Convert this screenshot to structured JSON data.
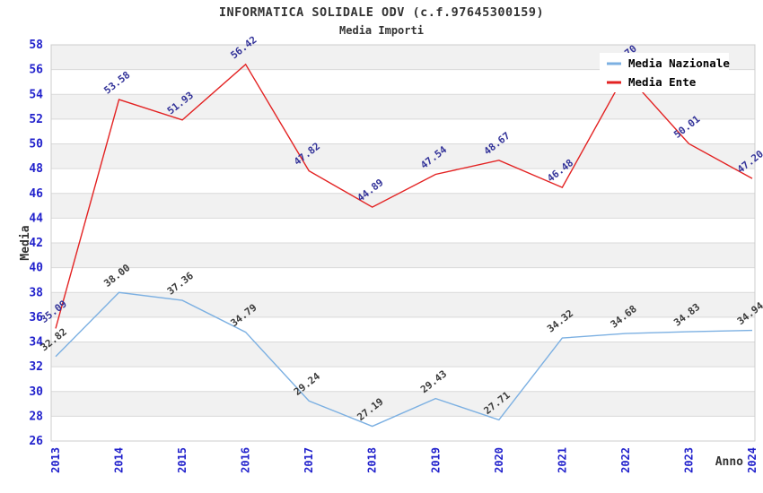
{
  "title": "INFORMATICA SOLIDALE ODV (c.f.97645300159)",
  "subtitle": "Media Importi",
  "chart_data": {
    "type": "line",
    "x": [
      "2013",
      "2014",
      "2015",
      "2016",
      "2017",
      "2018",
      "2019",
      "2020",
      "2021",
      "2022",
      "2023",
      "2024"
    ],
    "series": [
      {
        "name": "Media Nazionale",
        "color": "#7cb0e2",
        "label_color": "#3a3a3a",
        "values": [
          32.82,
          38.0,
          37.36,
          34.79,
          29.24,
          27.19,
          29.43,
          27.71,
          34.32,
          34.68,
          34.83,
          34.94
        ]
      },
      {
        "name": "Media Ente",
        "color": "#e32222",
        "label_color": "#333399",
        "values": [
          35.09,
          53.58,
          51.93,
          56.42,
          47.82,
          44.89,
          47.54,
          48.67,
          46.48,
          55.7,
          50.01,
          47.2
        ]
      }
    ],
    "hidden_point_label": {
      "series": "Media Ente",
      "x": "2022",
      "note": "label covered by legend box, value estimated from line geometry"
    },
    "xlabel": "Anno",
    "ylabel": "Media",
    "ylim": [
      26,
      58
    ],
    "ytick_step": 2,
    "grid": true,
    "legend_position": "top-right",
    "colors": {
      "tick_label": "#2222cc",
      "band_gray": "#f1f1f1",
      "band_white": "#ffffff",
      "gridline": "#d9d9d9",
      "plot_border": "#cccccc",
      "axis_title": "#333333",
      "legend_text": "#000000",
      "legend_bg": "#ffffff"
    }
  },
  "legend": {
    "items": [
      {
        "label": "Media Nazionale"
      },
      {
        "label": "Media Ente"
      }
    ]
  }
}
